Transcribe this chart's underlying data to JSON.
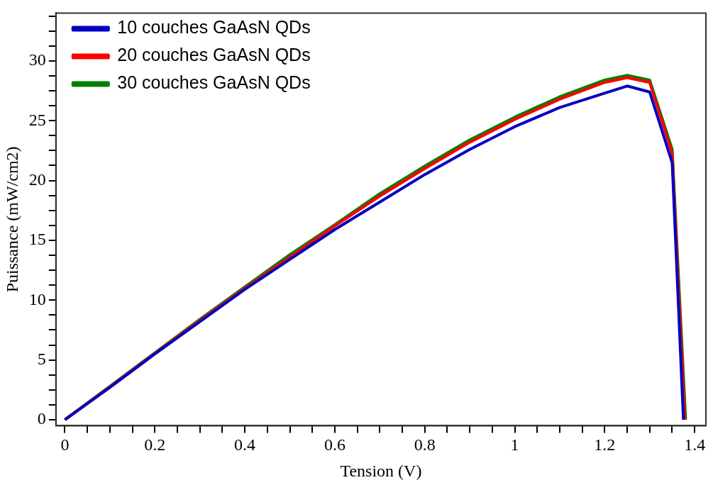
{
  "chart_data": {
    "type": "line",
    "xlabel": "Tension (V)",
    "ylabel": "Puissance (mW/cm2)",
    "xlim": [
      -0.02,
      1.425
    ],
    "ylim": [
      -0.5,
      34
    ],
    "xticks": [
      0,
      {
        "value": 0.05,
        "label": null
      },
      {
        "value": 0.1,
        "label": null
      },
      {
        "value": 0.15,
        "label": null
      },
      0.2,
      {
        "value": 0.25,
        "label": null
      },
      {
        "value": 0.3,
        "label": null
      },
      {
        "value": 0.35,
        "label": null
      },
      0.4,
      {
        "value": 0.45,
        "label": null
      },
      {
        "value": 0.5,
        "label": null
      },
      {
        "value": 0.55,
        "label": null
      },
      0.6,
      {
        "value": 0.65,
        "label": null
      },
      {
        "value": 0.7,
        "label": null
      },
      {
        "value": 0.75,
        "label": null
      },
      0.8,
      {
        "value": 0.85,
        "label": null
      },
      {
        "value": 0.9,
        "label": null
      },
      {
        "value": 0.95,
        "label": null
      },
      1,
      {
        "value": 1.05,
        "label": null
      },
      {
        "value": 1.1,
        "label": null
      },
      {
        "value": 1.15,
        "label": null
      },
      1.2,
      {
        "value": 1.25,
        "label": null
      },
      {
        "value": 1.3,
        "label": null
      },
      {
        "value": 1.35,
        "label": null
      },
      1.4
    ],
    "yticks": [
      0,
      {
        "value": 1.25,
        "label": null
      },
      {
        "value": 2.5,
        "label": null
      },
      {
        "value": 3.75,
        "label": null
      },
      5,
      {
        "value": 6.25,
        "label": null
      },
      {
        "value": 7.5,
        "label": null
      },
      {
        "value": 8.75,
        "label": null
      },
      10,
      {
        "value": 11.25,
        "label": null
      },
      {
        "value": 12.5,
        "label": null
      },
      {
        "value": 13.75,
        "label": null
      },
      15,
      {
        "value": 16.25,
        "label": null
      },
      {
        "value": 17.5,
        "label": null
      },
      {
        "value": 18.75,
        "label": null
      },
      20,
      {
        "value": 21.25,
        "label": null
      },
      {
        "value": 22.5,
        "label": null
      },
      {
        "value": 23.75,
        "label": null
      },
      25,
      {
        "value": 26.25,
        "label": null
      },
      {
        "value": 27.5,
        "label": null
      },
      {
        "value": 28.75,
        "label": null
      },
      30,
      {
        "value": 31.25,
        "label": null
      },
      {
        "value": 32.5,
        "label": null
      },
      {
        "value": 33.75,
        "label": null
      }
    ],
    "grid": false,
    "legend": "top left",
    "marker": "none",
    "line_style": "solid",
    "series": [
      {
        "name": "10 couches GaAsN QDs",
        "color": "#0000c0",
        "x": [
          0,
          0.1,
          0.2,
          0.3,
          0.4,
          0.5,
          0.6,
          0.7,
          0.8,
          0.9,
          1.0,
          1.1,
          1.2,
          1.25,
          1.3,
          1.35,
          1.375
        ],
        "values": [
          0,
          2.7,
          5.5,
          8.2,
          10.9,
          13.4,
          15.9,
          18.2,
          20.5,
          22.6,
          24.5,
          26.1,
          27.3,
          27.9,
          27.4,
          21.5,
          0
        ]
      },
      {
        "name": "20 couches GaAsN QDs",
        "color": "#ff0000",
        "x": [
          0,
          0.1,
          0.2,
          0.3,
          0.4,
          0.5,
          0.6,
          0.7,
          0.8,
          0.9,
          1.0,
          1.1,
          1.2,
          1.25,
          1.3,
          1.35,
          1.378
        ],
        "values": [
          0,
          2.75,
          5.55,
          8.3,
          11.0,
          13.6,
          16.2,
          18.7,
          21.0,
          23.2,
          25.1,
          26.8,
          28.2,
          28.6,
          28.2,
          22.3,
          0
        ]
      },
      {
        "name": "30 couches GaAsN QDs",
        "color": "#008000",
        "x": [
          0,
          0.1,
          0.2,
          0.3,
          0.4,
          0.5,
          0.6,
          0.7,
          0.8,
          0.9,
          1.0,
          1.1,
          1.2,
          1.25,
          1.3,
          1.35,
          1.38
        ],
        "values": [
          0,
          2.8,
          5.6,
          8.4,
          11.1,
          13.8,
          16.3,
          18.9,
          21.2,
          23.4,
          25.3,
          27.0,
          28.4,
          28.8,
          28.4,
          22.6,
          0
        ]
      }
    ]
  }
}
